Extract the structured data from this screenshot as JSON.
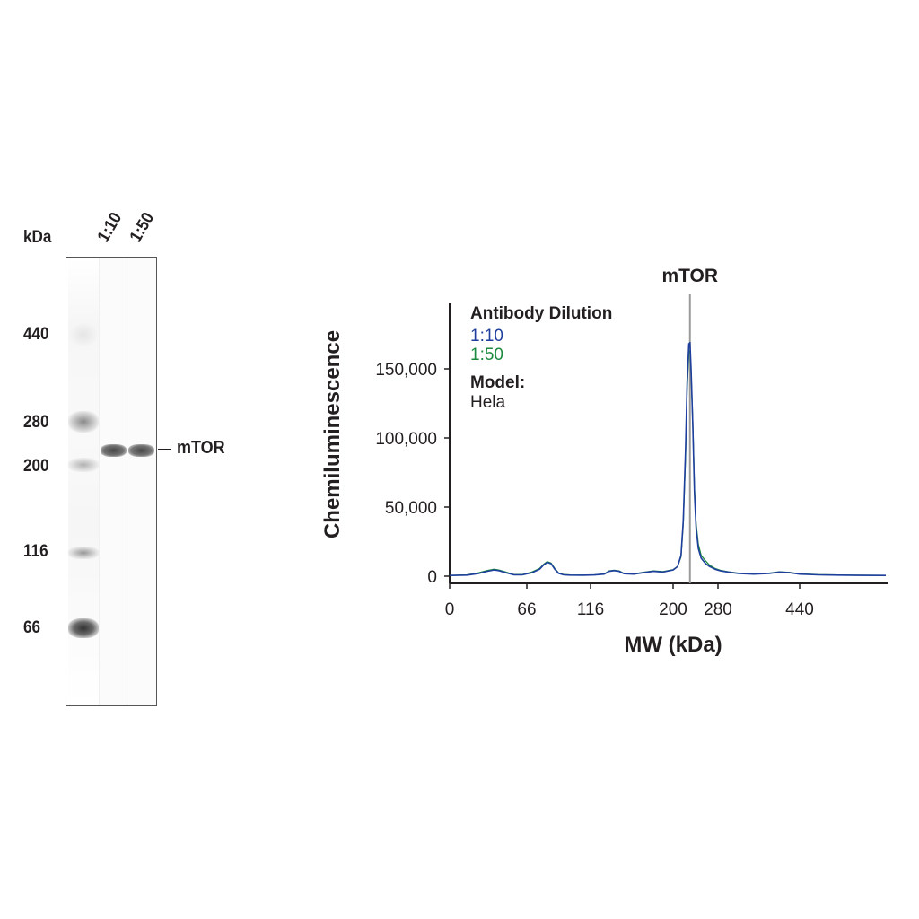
{
  "blot": {
    "unit_label": "kDa",
    "lanes": [
      "1:10",
      "1:50"
    ],
    "mw_markers": [
      "440",
      "280",
      "200",
      "116",
      "66"
    ],
    "target_label": "mTOR"
  },
  "chart_data": {
    "type": "line",
    "xlabel": "MW (kDa)",
    "ylabel": "Chemiluminescence",
    "x_ticks": [
      "0",
      "66",
      "116",
      "200",
      "280",
      "440"
    ],
    "y_ticks": [
      "0",
      "50,000",
      "100,000",
      "150,000"
    ],
    "y_tick_values": [
      0,
      50000,
      100000,
      150000
    ],
    "ylim": [
      0,
      198000
    ],
    "peak_marker": {
      "label": "mTOR",
      "x": 230
    },
    "legend": {
      "title": "Antibody Dilution",
      "model_title": "Model:",
      "model_value": "Hela"
    },
    "x": [
      0,
      15,
      25,
      32,
      38,
      42,
      48,
      55,
      62,
      70,
      76,
      79,
      82,
      85,
      88,
      91,
      95,
      100,
      110,
      120,
      130,
      135,
      140,
      145,
      150,
      160,
      170,
      180,
      190,
      200,
      208,
      214,
      218,
      222,
      225,
      228,
      230,
      232,
      235,
      238,
      241,
      245,
      250,
      258,
      265,
      275,
      285,
      300,
      320,
      350,
      380,
      400,
      420,
      440,
      460,
      480,
      500,
      530
    ],
    "series": [
      {
        "name": "1:10",
        "color": "#1f3f9e",
        "values": [
          500,
          800,
          2000,
          3500,
          4500,
          4000,
          2500,
          1000,
          1000,
          2500,
          5000,
          8000,
          10000,
          9000,
          5000,
          2000,
          1000,
          800,
          700,
          900,
          1500,
          3500,
          4000,
          3500,
          1800,
          1500,
          2500,
          3500,
          3000,
          4500,
          7000,
          15000,
          40000,
          90000,
          140000,
          168000,
          169000,
          150000,
          110000,
          60000,
          35000,
          20000,
          13000,
          9000,
          7000,
          5000,
          3800,
          3000,
          2000,
          1500,
          2000,
          3000,
          2500,
          1500,
          1000,
          800,
          600,
          500
        ]
      },
      {
        "name": "1:50",
        "color": "#1b8a3e",
        "values": [
          600,
          1000,
          2500,
          4000,
          5000,
          4500,
          3000,
          1200,
          1200,
          3000,
          5500,
          8500,
          10500,
          9500,
          5500,
          2300,
          1200,
          900,
          800,
          1000,
          1700,
          3800,
          4300,
          3800,
          2000,
          1700,
          2800,
          3800,
          3300,
          4700,
          7000,
          14000,
          38000,
          85000,
          135000,
          162000,
          163000,
          148000,
          112000,
          64000,
          38000,
          23000,
          15000,
          11000,
          8000,
          5500,
          4200,
          3200,
          2200,
          1700,
          2200,
          3200,
          2700,
          1700,
          1100,
          900,
          700,
          600
        ]
      }
    ]
  }
}
